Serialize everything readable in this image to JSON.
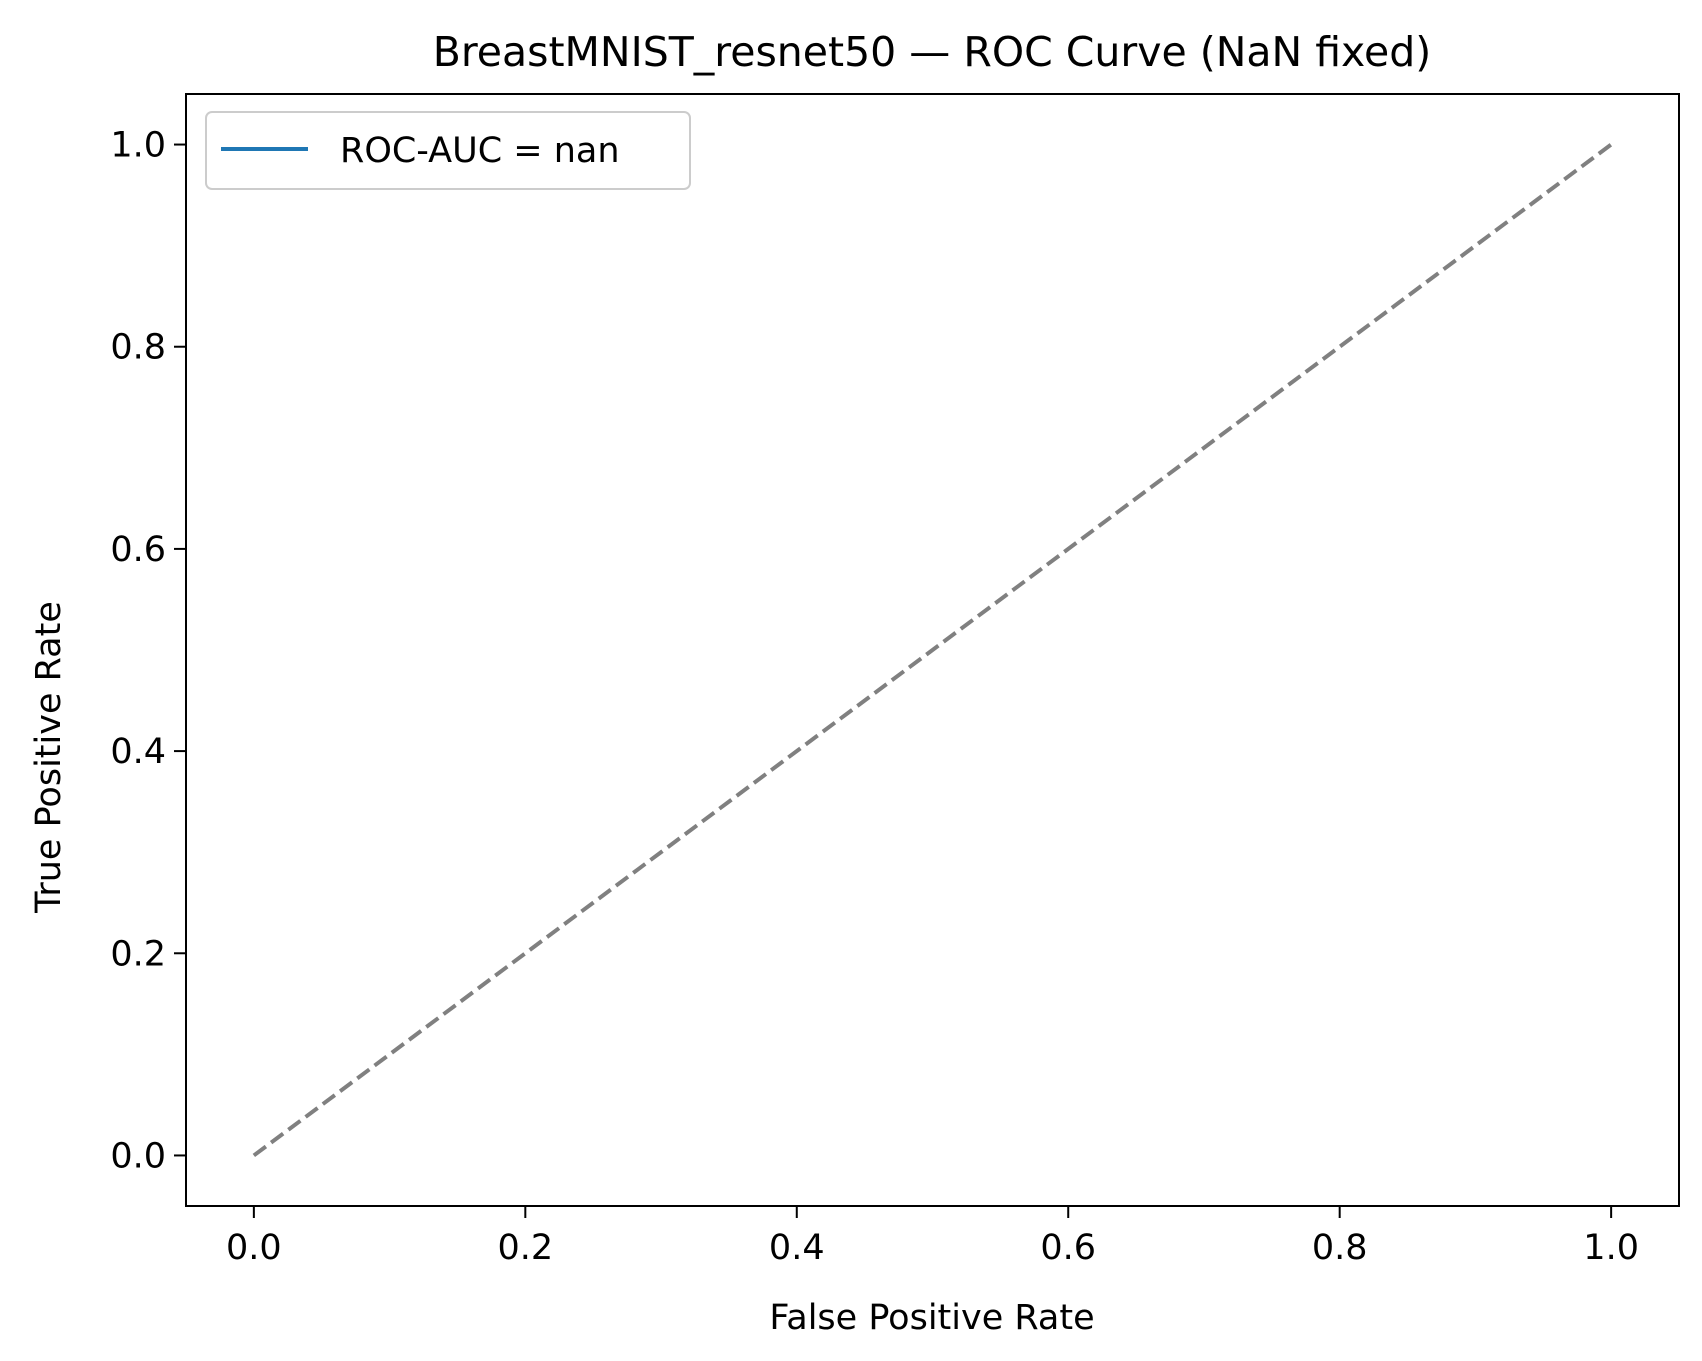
{
  "chart_data": {
    "type": "line",
    "title": "BreastMNIST_resnet50 — ROC Curve (NaN fixed)",
    "xlabel": "False Positive Rate",
    "ylabel": "True Positive Rate",
    "xlim": [
      -0.05,
      1.05
    ],
    "ylim": [
      -0.05,
      1.05
    ],
    "xticks": [
      0.0,
      0.2,
      0.4,
      0.6,
      0.8,
      1.0
    ],
    "xtick_labels": [
      "0.0",
      "0.2",
      "0.4",
      "0.6",
      "0.8",
      "1.0"
    ],
    "yticks": [
      0.0,
      0.2,
      0.4,
      0.6,
      0.8,
      1.0
    ],
    "ytick_labels": [
      "0.0",
      "0.2",
      "0.4",
      "0.6",
      "0.8",
      "1.0"
    ],
    "grid": false,
    "legend": {
      "position": "top-left",
      "entries": [
        {
          "label": "ROC-AUC = nan",
          "color": "#1f77b4",
          "style": "solid"
        }
      ]
    },
    "series": [
      {
        "name": "ROC-AUC = nan",
        "color": "#1f77b4",
        "style": "solid",
        "x": [],
        "y": []
      },
      {
        "color": "#808080",
        "style": "dashed",
        "x": [
          0,
          1
        ],
        "y": [
          0,
          1
        ]
      }
    ]
  }
}
